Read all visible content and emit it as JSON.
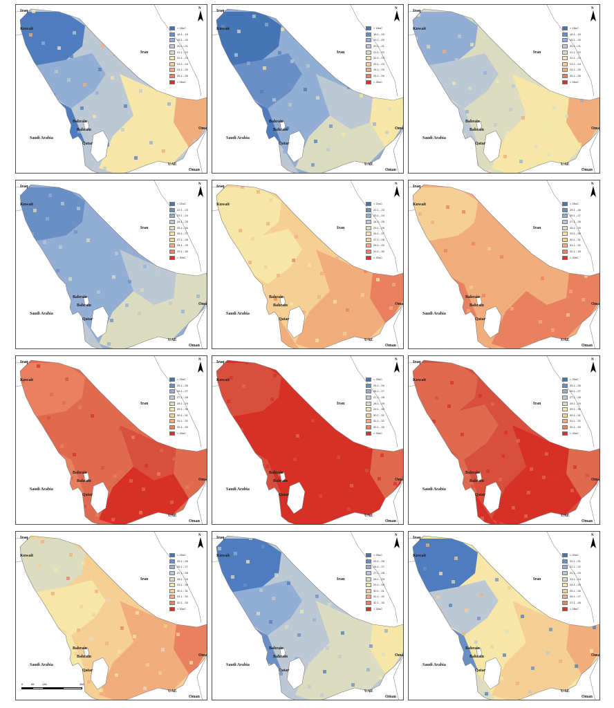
{
  "place_labels": {
    "iraq": "Iraq",
    "kuwait": "Kuwait",
    "iran": "Iran",
    "saudi": "Saudi Arabia",
    "bahrain": "Bahrain",
    "qatar": "Qatar",
    "uae": "UAE",
    "oman": "Oman"
  },
  "north_label": "N",
  "scale_bar": {
    "labels": [
      "0",
      "65",
      "130",
      "260"
    ]
  },
  "panels": [
    {
      "legend": [
        "< 18oC",
        "18.1 - 19",
        "19.1 - 20",
        "20.1 - 21",
        "21.1 - 22",
        "22.1 - 23",
        "23.1 - 24",
        "24.1 - 25",
        "25.1 - 26",
        "> 26oC"
      ],
      "legend_colors": [
        "#4575b4",
        "#6a8fc4",
        "#93aed4",
        "#bcc9d4",
        "#dcdcc0",
        "#f6e7a8",
        "#f6cf95",
        "#f2ad7c",
        "#e9805f",
        "#d73027"
      ],
      "zones": [
        "#4f7cbe",
        "#93aed4",
        "#bcc9d4",
        "#f6e7a8",
        "#f6e7a8",
        "#f2ad7c",
        "#bcc9d4",
        "#4f7cbe"
      ]
    },
    {
      "legend": [
        "< 18oC",
        "18.1 - 19",
        "19.1 - 20",
        "20.1 - 21",
        "21.1 - 22",
        "22.1 - 23",
        "23.1 - 24",
        "24.1 - 25",
        "25.1 - 26",
        "> 26oC"
      ],
      "legend_colors": [
        "#4575b4",
        "#6a8fc4",
        "#93aed4",
        "#bcc9d4",
        "#dcdcc0",
        "#f6e7a8",
        "#f6cf95",
        "#f2ad7c",
        "#e9805f",
        "#d73027"
      ],
      "zones": [
        "#4575b4",
        "#6a8fc4",
        "#93aed4",
        "#bcc9d4",
        "#dcdcc0",
        "#f6e7a8",
        "#bcc9d4",
        "#4f7cbe"
      ]
    },
    {
      "legend": [
        "< 18oC",
        "18.1 - 19",
        "19.1 - 20",
        "20.1 - 21",
        "21.1 - 22",
        "22.1 - 23",
        "23.1 - 24",
        "24.1 - 25",
        "25.1 - 26",
        "> 26oC"
      ],
      "legend_colors": [
        "#4575b4",
        "#6a8fc4",
        "#93aed4",
        "#bcc9d4",
        "#dcdcc0",
        "#f6e7a8",
        "#f6cf95",
        "#f2ad7c",
        "#e9805f",
        "#d73027"
      ],
      "zones": [
        "#93aed4",
        "#bcc9d4",
        "#dcdcc0",
        "#f6e7a8",
        "#f6e7a8",
        "#f2ad7c",
        "#dcdcc0",
        "#bcc9d4"
      ]
    },
    {
      "legend": [
        "< 22oC",
        "22.1 - 23",
        "23.1 - 24",
        "24.1 - 25",
        "25.1 - 26",
        "26.1 - 27",
        "27.1 - 28",
        "28.1 - 29",
        "29.1 - 30",
        "> 30oC"
      ],
      "legend_colors": [
        "#4575b4",
        "#6a8fc4",
        "#93aed4",
        "#bcc9d4",
        "#dcdcc0",
        "#f6e7a8",
        "#f6cf95",
        "#f2ad7c",
        "#e9805f",
        "#d73027"
      ],
      "zones": [
        "#6a8fc4",
        "#93aed4",
        "#93aed4",
        "#bcc9d4",
        "#dcdcc0",
        "#dcdcc0",
        "#bcc9d4",
        "#93aed4"
      ]
    },
    {
      "legend": [
        "< 22oC",
        "22.1 - 23",
        "23.1 - 24",
        "24.1 - 25",
        "25.1 - 26",
        "26.1 - 27",
        "27.1 - 28",
        "28.1 - 29",
        "29.1 - 30",
        "> 30oC"
      ],
      "legend_colors": [
        "#4575b4",
        "#6a8fc4",
        "#93aed4",
        "#bcc9d4",
        "#dcdcc0",
        "#f6e7a8",
        "#f6cf95",
        "#f2ad7c",
        "#e9805f",
        "#d73027"
      ],
      "zones": [
        "#f6e7a8",
        "#f6e7a8",
        "#f6cf95",
        "#f2ad7c",
        "#f2ad7c",
        "#e9805f",
        "#f2ad7c",
        "#f6cf95"
      ]
    },
    {
      "legend": [
        "< 25oC",
        "25.1 - 26",
        "26.1 - 27",
        "27.1 - 28",
        "28.1 - 29",
        "29.1 - 30",
        "30.1 - 31",
        "31.1 - 32",
        "32.1 - 33",
        "> 33oC"
      ],
      "legend_colors": [
        "#4575b4",
        "#6a8fc4",
        "#93aed4",
        "#bcc9d4",
        "#dcdcc0",
        "#f6e7a8",
        "#f6cf95",
        "#f2ad7c",
        "#e9805f",
        "#d73027"
      ],
      "zones": [
        "#f6cf95",
        "#f2ad7c",
        "#f2ad7c",
        "#f2ad7c",
        "#e9805f",
        "#e9805f",
        "#f2ad7c",
        "#e9805f"
      ]
    },
    {
      "legend": [
        "< 25oC",
        "25.1 - 26",
        "26.1 - 27",
        "27.1 - 28",
        "28.1 - 29",
        "29.1 - 30",
        "30.1 - 31",
        "31.1 - 32",
        "32.1 - 33",
        "> 33oC"
      ],
      "legend_colors": [
        "#4575b4",
        "#6a8fc4",
        "#93aed4",
        "#bcc9d4",
        "#dcdcc0",
        "#f6e7a8",
        "#f6cf95",
        "#f2ad7c",
        "#e9805f",
        "#d73027"
      ],
      "zones": [
        "#e9805f",
        "#e06a4f",
        "#e06a4f",
        "#d8503d",
        "#d73027",
        "#e06a4f",
        "#e06a4f",
        "#e9805f"
      ]
    },
    {
      "legend": [
        "< 25oC",
        "25.1 - 26",
        "26.1 - 27",
        "27.1 - 28",
        "28.1 - 29",
        "29.1 - 30",
        "30.1 - 31",
        "31.1 - 32",
        "32.1 - 33",
        "> 33oC"
      ],
      "legend_colors": [
        "#4575b4",
        "#6a8fc4",
        "#93aed4",
        "#bcc9d4",
        "#dcdcc0",
        "#f6e7a8",
        "#f6cf95",
        "#f2ad7c",
        "#e9805f",
        "#d73027"
      ],
      "zones": [
        "#d8503d",
        "#d73027",
        "#d73027",
        "#d73027",
        "#d73027",
        "#e06a4f",
        "#d73027",
        "#d8503d"
      ]
    },
    {
      "legend": [
        "< 25oC",
        "25.1 - 26",
        "26.1 - 27",
        "27.1 - 28",
        "28.1 - 29",
        "29.1 - 30",
        "30.1 - 31",
        "31.1 - 32",
        "32.1 - 33",
        "> 33oC"
      ],
      "legend_colors": [
        "#4575b4",
        "#6a8fc4",
        "#93aed4",
        "#bcc9d4",
        "#dcdcc0",
        "#f6e7a8",
        "#f6cf95",
        "#f2ad7c",
        "#e9805f",
        "#d73027"
      ],
      "zones": [
        "#e06a4f",
        "#e06a4f",
        "#d8503d",
        "#d73027",
        "#d73027",
        "#e06a4f",
        "#d73027",
        "#e06a4f"
      ]
    },
    {
      "legend": [
        "< 25oC",
        "25.1 - 26",
        "26.1 - 27",
        "27.1 - 28",
        "28.1 - 29",
        "29.1 - 30",
        "30.1 - 31",
        "31.1 - 32",
        "32.1 - 33",
        "> 33oC"
      ],
      "legend_colors": [
        "#4575b4",
        "#6a8fc4",
        "#93aed4",
        "#bcc9d4",
        "#dcdcc0",
        "#f6e7a8",
        "#f6cf95",
        "#f2ad7c",
        "#e9805f",
        "#d73027"
      ],
      "zones": [
        "#dcdcc0",
        "#f6e7a8",
        "#f6cf95",
        "#f2ad7c",
        "#f2ad7c",
        "#e9805f",
        "#f6cf95",
        "#f6e7a8"
      ]
    },
    {
      "legend": [
        "< 25oC",
        "25.1 - 26",
        "26.1 - 27",
        "27.1 - 28",
        "28.1 - 29",
        "29.1 - 30",
        "30.1 - 31",
        "31.1 - 32",
        "32.1 - 33",
        "> 33oC"
      ],
      "legend_colors": [
        "#4575b4",
        "#6a8fc4",
        "#93aed4",
        "#bcc9d4",
        "#dcdcc0",
        "#f6e7a8",
        "#f6cf95",
        "#f2ad7c",
        "#e9805f",
        "#d73027"
      ],
      "zones": [
        "#4f7cbe",
        "#93aed4",
        "#bcc9d4",
        "#dcdcc0",
        "#dcdcc0",
        "#f6e7a8",
        "#bcc9d4",
        "#6a8fc4"
      ]
    },
    {
      "legend": [
        "< 20oC",
        "20.1 - 21",
        "21.1 - 22",
        "22.1 - 23",
        "23.1 - 24",
        "24.1 - 25",
        "25.1 - 26",
        "26.1 - 27",
        "27.1 - 28",
        "> 28oC"
      ],
      "legend_colors": [
        "#4575b4",
        "#6a8fc4",
        "#93aed4",
        "#bcc9d4",
        "#dcdcc0",
        "#f6e7a8",
        "#f6cf95",
        "#f2ad7c",
        "#e9805f",
        "#d73027"
      ],
      "zones": [
        "#4f7cbe",
        "#bcc9d4",
        "#f6e7a8",
        "#f6cf95",
        "#f6cf95",
        "#f2ad7c",
        "#dcdcc0",
        "#6a8fc4"
      ]
    }
  ]
}
